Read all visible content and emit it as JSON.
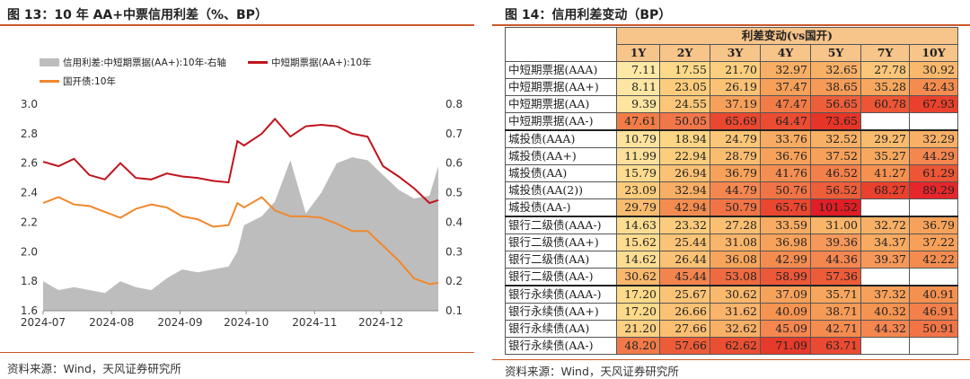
{
  "left": {
    "title": "图 13：10 年 AA+中票信用利差（%、BP）",
    "source": "资料来源：Wind，天风证券研究所",
    "colors": {
      "area": "#bdbdbd",
      "red": "#c0141c",
      "orange": "#f0882c"
    }
  },
  "chart_data": {
    "type": "line",
    "x": [
      "2024-07-01",
      "2024-07-08",
      "2024-07-15",
      "2024-07-22",
      "2024-07-29",
      "2024-08-05",
      "2024-08-12",
      "2024-08-19",
      "2024-08-26",
      "2024-09-02",
      "2024-09-09",
      "2024-09-16",
      "2024-09-23",
      "2024-09-27",
      "2024-09-30",
      "2024-10-08",
      "2024-10-14",
      "2024-10-21",
      "2024-10-28",
      "2024-11-04",
      "2024-11-11",
      "2024-11-18",
      "2024-11-25",
      "2024-12-02",
      "2024-12-09",
      "2024-12-16",
      "2024-12-23",
      "2024-12-27"
    ],
    "x_tick_labels": [
      "2024-07",
      "2024-08",
      "2024-09",
      "2024-10",
      "2024-11",
      "2024-12"
    ],
    "series": [
      {
        "name": "信用利差:中短期票据(AA+):10年-右轴",
        "type": "area",
        "axis": "right",
        "values": [
          0.2,
          0.17,
          0.18,
          0.17,
          0.16,
          0.2,
          0.18,
          0.17,
          0.21,
          0.24,
          0.23,
          0.24,
          0.25,
          0.3,
          0.39,
          0.42,
          0.47,
          0.61,
          0.43,
          0.5,
          0.6,
          0.62,
          0.61,
          0.56,
          0.51,
          0.48,
          0.49,
          0.59
        ]
      },
      {
        "name": "中短期票据(AA+):10年",
        "type": "line",
        "axis": "left",
        "values": [
          2.61,
          2.58,
          2.63,
          2.52,
          2.49,
          2.6,
          2.5,
          2.49,
          2.53,
          2.51,
          2.5,
          2.48,
          2.47,
          2.75,
          2.72,
          2.8,
          2.9,
          2.78,
          2.85,
          2.86,
          2.85,
          2.8,
          2.78,
          2.58,
          2.51,
          2.43,
          2.33,
          2.35
        ]
      },
      {
        "name": "国开债:10年",
        "type": "line",
        "axis": "left",
        "values": [
          2.33,
          2.37,
          2.32,
          2.31,
          2.27,
          2.23,
          2.29,
          2.32,
          2.3,
          2.24,
          2.22,
          2.17,
          2.18,
          2.33,
          2.3,
          2.37,
          2.28,
          2.24,
          2.24,
          2.23,
          2.19,
          2.14,
          2.14,
          2.04,
          1.94,
          1.82,
          1.78,
          1.79
        ]
      }
    ],
    "ylim_left": [
      1.6,
      3.0
    ],
    "yticks_left": [
      "3.0",
      "2.8",
      "2.6",
      "2.4",
      "2.2",
      "2.0",
      "1.8",
      "1.6"
    ],
    "ylim_right": [
      0.1,
      0.8
    ],
    "yticks_right": [
      "0.8",
      "0.7",
      "0.6",
      "0.5",
      "0.4",
      "0.3",
      "0.2",
      "0.1"
    ],
    "legend_position": "top-left"
  },
  "right": {
    "title": "图 14：信用利差变动（BP）",
    "source": "资料来源：Wind，天风证券研究所",
    "group_header": "利差变动(vs国开)",
    "columns": [
      "1Y",
      "2Y",
      "3Y",
      "4Y",
      "5Y",
      "7Y",
      "10Y"
    ],
    "colors": {
      "header_bg": "#f7c48a"
    },
    "rows": [
      {
        "label": "中短期票据(AAA)",
        "cells": [
          "7.11",
          "17.55",
          "21.70",
          "32.97",
          "32.65",
          "27.78",
          "30.92"
        ],
        "colors": [
          "#fde8a6",
          "#fdd98a",
          "#fbcf7e",
          "#f8ae64",
          "#f8b066",
          "#fbc679",
          "#f9b86c"
        ]
      },
      {
        "label": "中短期票据(AA+)",
        "cells": [
          "8.11",
          "23.05",
          "26.19",
          "37.47",
          "38.65",
          "35.28",
          "42.43"
        ],
        "colors": [
          "#fde6a3",
          "#fccc7c",
          "#fbc174",
          "#f6a05a",
          "#f59b57",
          "#f7a85e",
          "#f48c50"
        ]
      },
      {
        "label": "中短期票据(AA)",
        "cells": [
          "9.39",
          "24.55",
          "37.19",
          "47.47",
          "56.65",
          "60.78",
          "67.93"
        ],
        "colors": [
          "#fde4a0",
          "#fbc677",
          "#f6a05a",
          "#f27c47",
          "#ed5e3a",
          "#ec5535",
          "#e9412d"
        ]
      },
      {
        "label": "中短期票据(AA-)",
        "cells": [
          "47.61",
          "50.05",
          "65.69",
          "64.47",
          "73.65",
          "",
          ""
        ],
        "colors": [
          "#f27c47",
          "#f1764a",
          "#ea4730",
          "#eb4c32",
          "#e63528",
          "#ffffff",
          "#ffffff"
        ]
      },
      {
        "label": "城投债(AAA)",
        "cells": [
          "10.79",
          "18.94",
          "24.79",
          "33.76",
          "32.52",
          "29.27",
          "32.29"
        ],
        "colors": [
          "#fde29e",
          "#fcd585",
          "#fbc677",
          "#f8ac63",
          "#f8b066",
          "#f9bb6e",
          "#f8b066"
        ],
        "sep": true
      },
      {
        "label": "城投债(AA+)",
        "cells": [
          "11.99",
          "22.94",
          "28.79",
          "36.76",
          "37.52",
          "35.27",
          "44.29"
        ],
        "colors": [
          "#fde09b",
          "#fccd7c",
          "#fabd70",
          "#f7a25b",
          "#f6a05a",
          "#f7a85e",
          "#f48650"
        ]
      },
      {
        "label": "城投债(AA)",
        "cells": [
          "15.79",
          "26.94",
          "36.79",
          "41.76",
          "46.52",
          "41.27",
          "61.29"
        ],
        "colors": [
          "#fddb8f",
          "#fbc174",
          "#f7a25b",
          "#f48e52",
          "#f3804a",
          "#f59150",
          "#ec5535"
        ]
      },
      {
        "label": "城投债(AA(2))",
        "cells": [
          "23.09",
          "32.94",
          "44.79",
          "50.76",
          "56.52",
          "68.27",
          "89.29"
        ],
        "colors": [
          "#fccc7c",
          "#f8ae64",
          "#f48650",
          "#f17446",
          "#ed5e3a",
          "#e9412d",
          "#e5272b"
        ]
      },
      {
        "label": "城投债(AA-)",
        "cells": [
          "29.79",
          "42.94",
          "50.79",
          "65.76",
          "101.52",
          "",
          ""
        ],
        "colors": [
          "#f9bb6e",
          "#f48c50",
          "#f17446",
          "#ea4730",
          "#e01e25",
          "#ffffff",
          "#ffffff"
        ]
      },
      {
        "label": "银行二级债(AAA-)",
        "cells": [
          "14.63",
          "23.32",
          "27.28",
          "33.59",
          "31.00",
          "32.72",
          "36.79"
        ],
        "colors": [
          "#fddd92",
          "#fccc7c",
          "#fbbf72",
          "#f8ac63",
          "#f9b66a",
          "#f8b066",
          "#f7a25b"
        ],
        "sep": true
      },
      {
        "label": "银行二级债(AA+)",
        "cells": [
          "15.62",
          "25.44",
          "31.08",
          "36.98",
          "39.36",
          "34.37",
          "37.22"
        ],
        "colors": [
          "#fddb8f",
          "#fbc376",
          "#f9b56a",
          "#f7a25b",
          "#f5985a",
          "#f8aa61",
          "#f6a05a"
        ]
      },
      {
        "label": "银行二级债(AA)",
        "cells": [
          "14.62",
          "26.44",
          "36.08",
          "42.99",
          "44.36",
          "39.37",
          "42.22"
        ],
        "colors": [
          "#fddd92",
          "#fbc174",
          "#f7a55c",
          "#f48c50",
          "#f48650",
          "#f5985a",
          "#f48c50"
        ]
      },
      {
        "label": "银行二级债(AA-)",
        "cells": [
          "30.62",
          "45.44",
          "53.08",
          "58.99",
          "57.36",
          "",
          ""
        ],
        "colors": [
          "#f9b86c",
          "#f4844e",
          "#ef6a40",
          "#ec5838",
          "#ed5c39",
          "#ffffff",
          "#ffffff"
        ]
      },
      {
        "label": "银行永续债(AAA-)",
        "cells": [
          "17.20",
          "25.67",
          "30.62",
          "37.09",
          "35.71",
          "37.32",
          "40.91"
        ],
        "colors": [
          "#fdd98a",
          "#fbc376",
          "#f9b86c",
          "#f7a25b",
          "#f7a65d",
          "#f6a05a",
          "#f59150"
        ],
        "sep": true
      },
      {
        "label": "银行永续债(AA+)",
        "cells": [
          "17.20",
          "26.66",
          "31.62",
          "40.09",
          "38.71",
          "40.32",
          "46.91"
        ],
        "colors": [
          "#fdd98a",
          "#fbc174",
          "#f9b36a",
          "#f59350",
          "#f59b57",
          "#f59350",
          "#f3804a"
        ]
      },
      {
        "label": "银行永续债(AA)",
        "cells": [
          "21.20",
          "27.66",
          "32.62",
          "45.09",
          "42.71",
          "44.32",
          "50.91"
        ],
        "colors": [
          "#fcd081",
          "#fbbf72",
          "#f8b066",
          "#f48650",
          "#f48c50",
          "#f48650",
          "#f17446"
        ]
      },
      {
        "label": "银行永续债(AA-)",
        "cells": [
          "48.20",
          "57.66",
          "62.62",
          "71.09",
          "63.71",
          "",
          ""
        ],
        "colors": [
          "#f27a48",
          "#ed5c39",
          "#eb4f33",
          "#e63a2a",
          "#ea4a31",
          "#ffffff",
          "#ffffff"
        ]
      }
    ]
  }
}
